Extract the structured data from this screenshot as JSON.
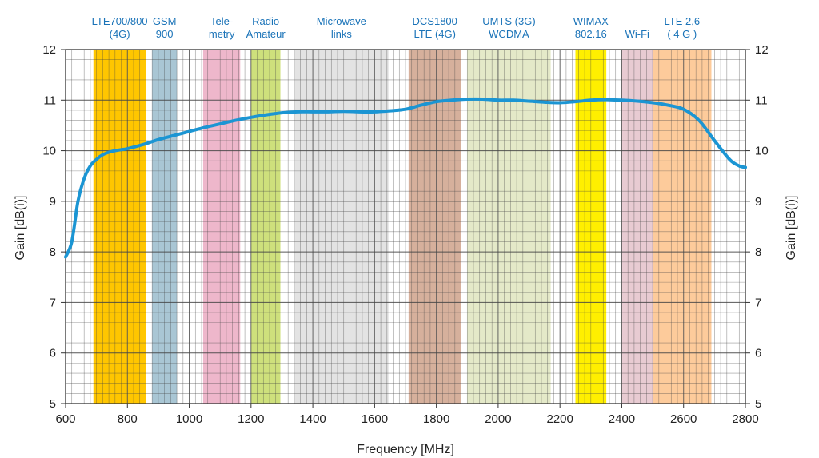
{
  "chart_data": {
    "type": "line",
    "xlabel": "Frequency  [MHz]",
    "ylabel": "Gain  [dB(i)]",
    "xlim": [
      600,
      2800
    ],
    "ylim": [
      5,
      12
    ],
    "x_ticks": [
      "600",
      "800",
      "1000",
      "1200",
      "1400",
      "1600",
      "1800",
      "2000",
      "2200",
      "2400",
      "2600",
      "2800"
    ],
    "y_ticks": [
      "5",
      "6",
      "7",
      "8",
      "9",
      "10",
      "11",
      "12"
    ],
    "grid": true,
    "series": [
      {
        "color": "#1b95d3",
        "x": [
          600,
          620,
          640,
          660,
          680,
          700,
          720,
          740,
          760,
          780,
          800,
          850,
          900,
          950,
          1000,
          1050,
          1100,
          1150,
          1200,
          1250,
          1300,
          1350,
          1400,
          1450,
          1500,
          1550,
          1600,
          1650,
          1700,
          1750,
          1800,
          1850,
          1900,
          1950,
          2000,
          2050,
          2100,
          2150,
          2200,
          2250,
          2300,
          2350,
          2400,
          2450,
          2500,
          2550,
          2600,
          2650,
          2700,
          2750,
          2780,
          2800
        ],
        "y": [
          7.9,
          8.2,
          9.0,
          9.45,
          9.7,
          9.83,
          9.92,
          9.97,
          10.0,
          10.02,
          10.04,
          10.12,
          10.22,
          10.3,
          10.38,
          10.46,
          10.53,
          10.6,
          10.66,
          10.71,
          10.75,
          10.77,
          10.77,
          10.77,
          10.78,
          10.77,
          10.77,
          10.79,
          10.82,
          10.9,
          10.97,
          11.0,
          11.02,
          11.02,
          11.0,
          11.0,
          10.98,
          10.96,
          10.95,
          10.97,
          11.0,
          11.01,
          11.0,
          10.98,
          10.95,
          10.9,
          10.82,
          10.6,
          10.2,
          9.82,
          9.7,
          9.67
        ]
      }
    ],
    "bands": [
      {
        "label": [
          "LTE700/800",
          "(4G)"
        ],
        "from": 690,
        "to": 860,
        "color": "#ffc600"
      },
      {
        "label": [
          "GSM",
          "900"
        ],
        "from": 880,
        "to": 960,
        "color": "#a9c6d4"
      },
      {
        "label": [
          "Tele-",
          "metry"
        ],
        "from": 1045,
        "to": 1165,
        "color": "#eeb7cb"
      },
      {
        "label": [
          "Radio",
          "Amateur"
        ],
        "from": 1200,
        "to": 1295,
        "color": "#cee07c"
      },
      {
        "label": [
          "Microwave",
          "links"
        ],
        "from": 1340,
        "to": 1645,
        "color": "#e3e3e3"
      },
      {
        "label": [
          "DCS1800",
          "LTE (4G)"
        ],
        "from": 1710,
        "to": 1880,
        "color": "#d6b09c"
      },
      {
        "label": [
          "UMTS (3G)",
          "WCDMA"
        ],
        "from": 1900,
        "to": 2170,
        "color": "#e4e9c8"
      },
      {
        "label": [
          "WIMAX",
          "802.16"
        ],
        "from": 2250,
        "to": 2350,
        "color": "#ffef00"
      },
      {
        "label": [
          "",
          "Wi-Fi"
        ],
        "from": 2400,
        "to": 2500,
        "color": "#e8cbd2"
      },
      {
        "label": [
          "LTE 2,6",
          "( 4 G )"
        ],
        "from": 2500,
        "to": 2690,
        "color": "#fdcb9b"
      }
    ]
  }
}
